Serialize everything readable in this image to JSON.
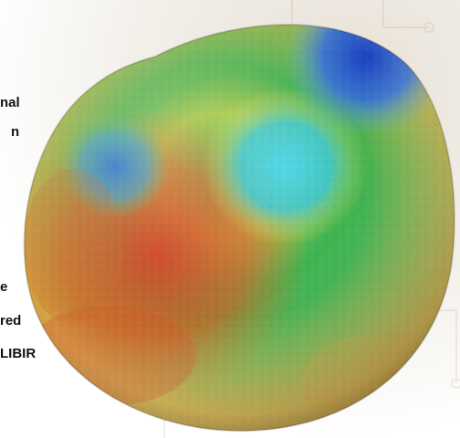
{
  "caption_fragments": {
    "line1": "nal",
    "line2": "n",
    "line3": "e",
    "line4": "red",
    "line5": "LIBIR"
  },
  "colors": {
    "low": "#1f3fbf",
    "mid_low": "#2fb3d9",
    "mid": "#3fbf4f",
    "mid_high": "#f2d43a",
    "high": "#d93a1f"
  }
}
